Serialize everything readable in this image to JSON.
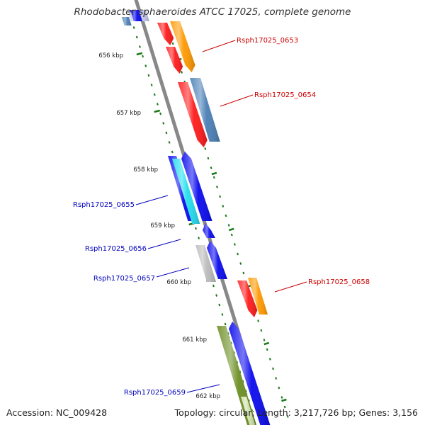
{
  "header": {
    "title": "Rhodobacter sphaeroides ATCC 17025, complete genome"
  },
  "footer": {
    "accession": "Accession: NC_009428",
    "summary": "Topology: circular; Length: 3,217,726 bp; Genes: 3,156"
  },
  "colors": {
    "backbone": "#888888",
    "tick": "#1a7a1a",
    "forward_label": "#cc0000",
    "reverse_label": "#0000bb",
    "gene_red": "#ff1a1a",
    "gene_orange": "#ff9900",
    "gene_steelblue": "#4a7fb5",
    "gene_blue": "#0a0aee",
    "gene_cyan": "#22ddee",
    "gene_gray": "#bbbbbb",
    "gene_olive": "#6b8e23"
  },
  "diagram": {
    "kbp_labels": [
      "656 kbp",
      "657 kbp",
      "658 kbp",
      "659 kbp",
      "660 kbp",
      "661 kbp",
      "662 kbp"
    ],
    "gene_labels": {
      "forward": [
        "Rsph17025_0653",
        "Rsph17025_0654",
        "Rsph17025_0658"
      ],
      "reverse": [
        "Rsph17025_0655",
        "Rsph17025_0656",
        "Rsph17025_0657",
        "Rsph17025_0659"
      ]
    }
  }
}
